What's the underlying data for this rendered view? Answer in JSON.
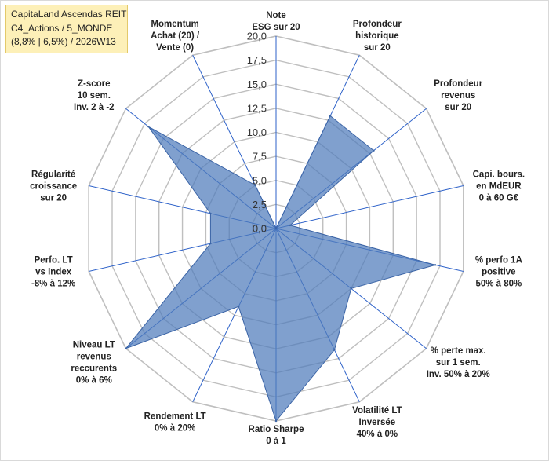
{
  "chart_data": {
    "type": "radar",
    "title_lines": [
      "CapitaLand Ascendas REIT",
      "C4_Actions / 5_MONDE",
      "(8,8% | 6,5%) / 2026W13"
    ],
    "r_range": [
      0,
      20
    ],
    "r_ticks": [
      "0,0",
      "2,5",
      "5,0",
      "7,5",
      "10,0",
      "12,5",
      "15,0",
      "17,5",
      "20,0"
    ],
    "grid": true,
    "colors": {
      "fill": "#4f7bbb",
      "stroke": "#3b64a6",
      "grid": "#bfbfbf",
      "spoke": "#2e62c9"
    },
    "axes": [
      {
        "lines": [
          "Note",
          "ESG sur 20"
        ],
        "value": 0
      },
      {
        "lines": [
          "Profondeur",
          "historique",
          "sur 20"
        ],
        "value": 13
      },
      {
        "lines": [
          "Profondeur",
          "revenus",
          "sur 20"
        ],
        "value": 13
      },
      {
        "lines": [
          "Capi. bours.",
          "en MdEUR",
          "0 à 60 G€"
        ],
        "value": 1.5
      },
      {
        "lines": [
          "% perfo 1A",
          "positive",
          "50% à 80%"
        ],
        "value": 17
      },
      {
        "lines": [
          "% perte max.",
          "sur 1 sem.",
          "Inv. 50% à 20%"
        ],
        "value": 10
      },
      {
        "lines": [
          "Volatilité LT",
          "Inversée",
          "40% à 0%"
        ],
        "value": 14
      },
      {
        "lines": [
          "Ratio Sharpe",
          "0 à 1"
        ],
        "value": 20
      },
      {
        "lines": [
          "Rendement LT",
          "0% à 20%"
        ],
        "value": 9
      },
      {
        "lines": [
          "Niveau LT",
          "revenus",
          "reccurents",
          "0% à 6%"
        ],
        "value": 20
      },
      {
        "lines": [
          "Perfo. LT",
          "vs Index",
          "-8% à 12%"
        ],
        "value": 7
      },
      {
        "lines": [
          "Régularité",
          "croissance",
          "sur 20"
        ],
        "value": 7
      },
      {
        "lines": [
          "Z-score",
          "10 sem.",
          "Inv. 2 à -2"
        ],
        "value": 17
      },
      {
        "lines": [
          "Momentum",
          "Achat (20) /",
          "Vente (0)"
        ],
        "value": 5
      }
    ]
  }
}
